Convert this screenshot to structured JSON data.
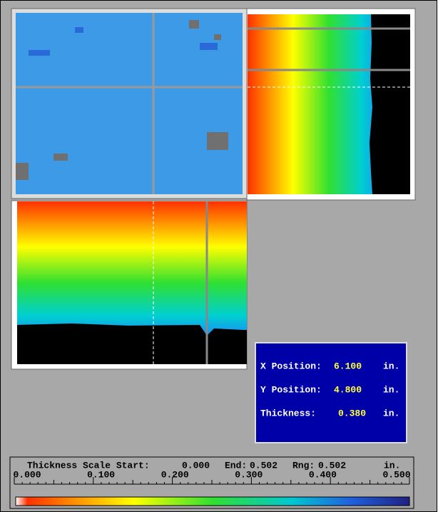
{
  "info_panel": {
    "rows": [
      {
        "label": "X Position:",
        "value": "6.100",
        "unit": "in."
      },
      {
        "label": "Y Position:",
        "value": "4.800",
        "unit": "in."
      },
      {
        "label": "Thickness:",
        "value": "0.380",
        "unit": "in."
      }
    ]
  },
  "scale": {
    "title": "Thickness Scale Start:",
    "start": "0.000",
    "end_label": "End:",
    "end": "0.502",
    "range_label": "Rng:",
    "range": "0.502",
    "unit": "in.",
    "tick_labels": [
      "0.000",
      "0.100",
      "0.200",
      "0.300",
      "0.400",
      "0.500"
    ]
  }
}
